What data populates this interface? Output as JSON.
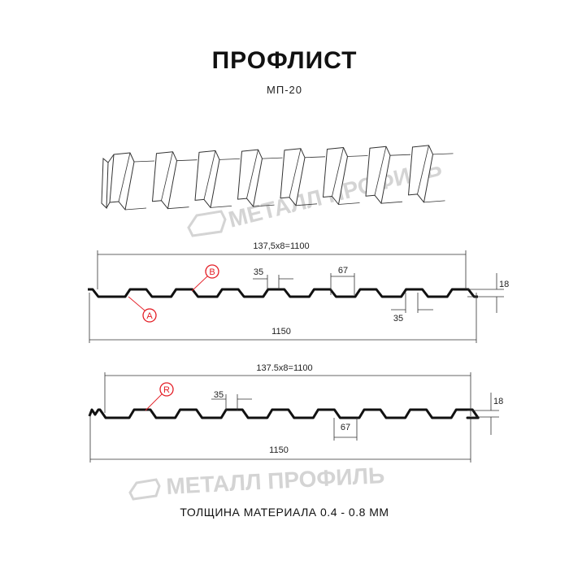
{
  "header": {
    "title": "ПРОФЛИСТ",
    "subtitle": "МП-20"
  },
  "watermark": {
    "text": "МЕТАЛЛ ПРОФИЛЬ"
  },
  "profile_a": {
    "pitch_dim": "137,5x8=1100",
    "width_dim": "1150",
    "top_width": "35",
    "bottom_width_top": "67",
    "bottom_width": "35",
    "height": "18",
    "marker_a": "A",
    "marker_b": "B"
  },
  "profile_r": {
    "pitch_dim": "137.5x8=1100",
    "width_dim": "1150",
    "top_width": "35",
    "bottom_width": "67",
    "height": "18",
    "marker_r": "R"
  },
  "footer": {
    "text": "ТОЛЩИНА МАТЕРИАЛА 0.4 - 0.8 ММ"
  },
  "colors": {
    "marker": "#e41e26",
    "profile": "#111111",
    "watermark": "#d4d4d4"
  }
}
